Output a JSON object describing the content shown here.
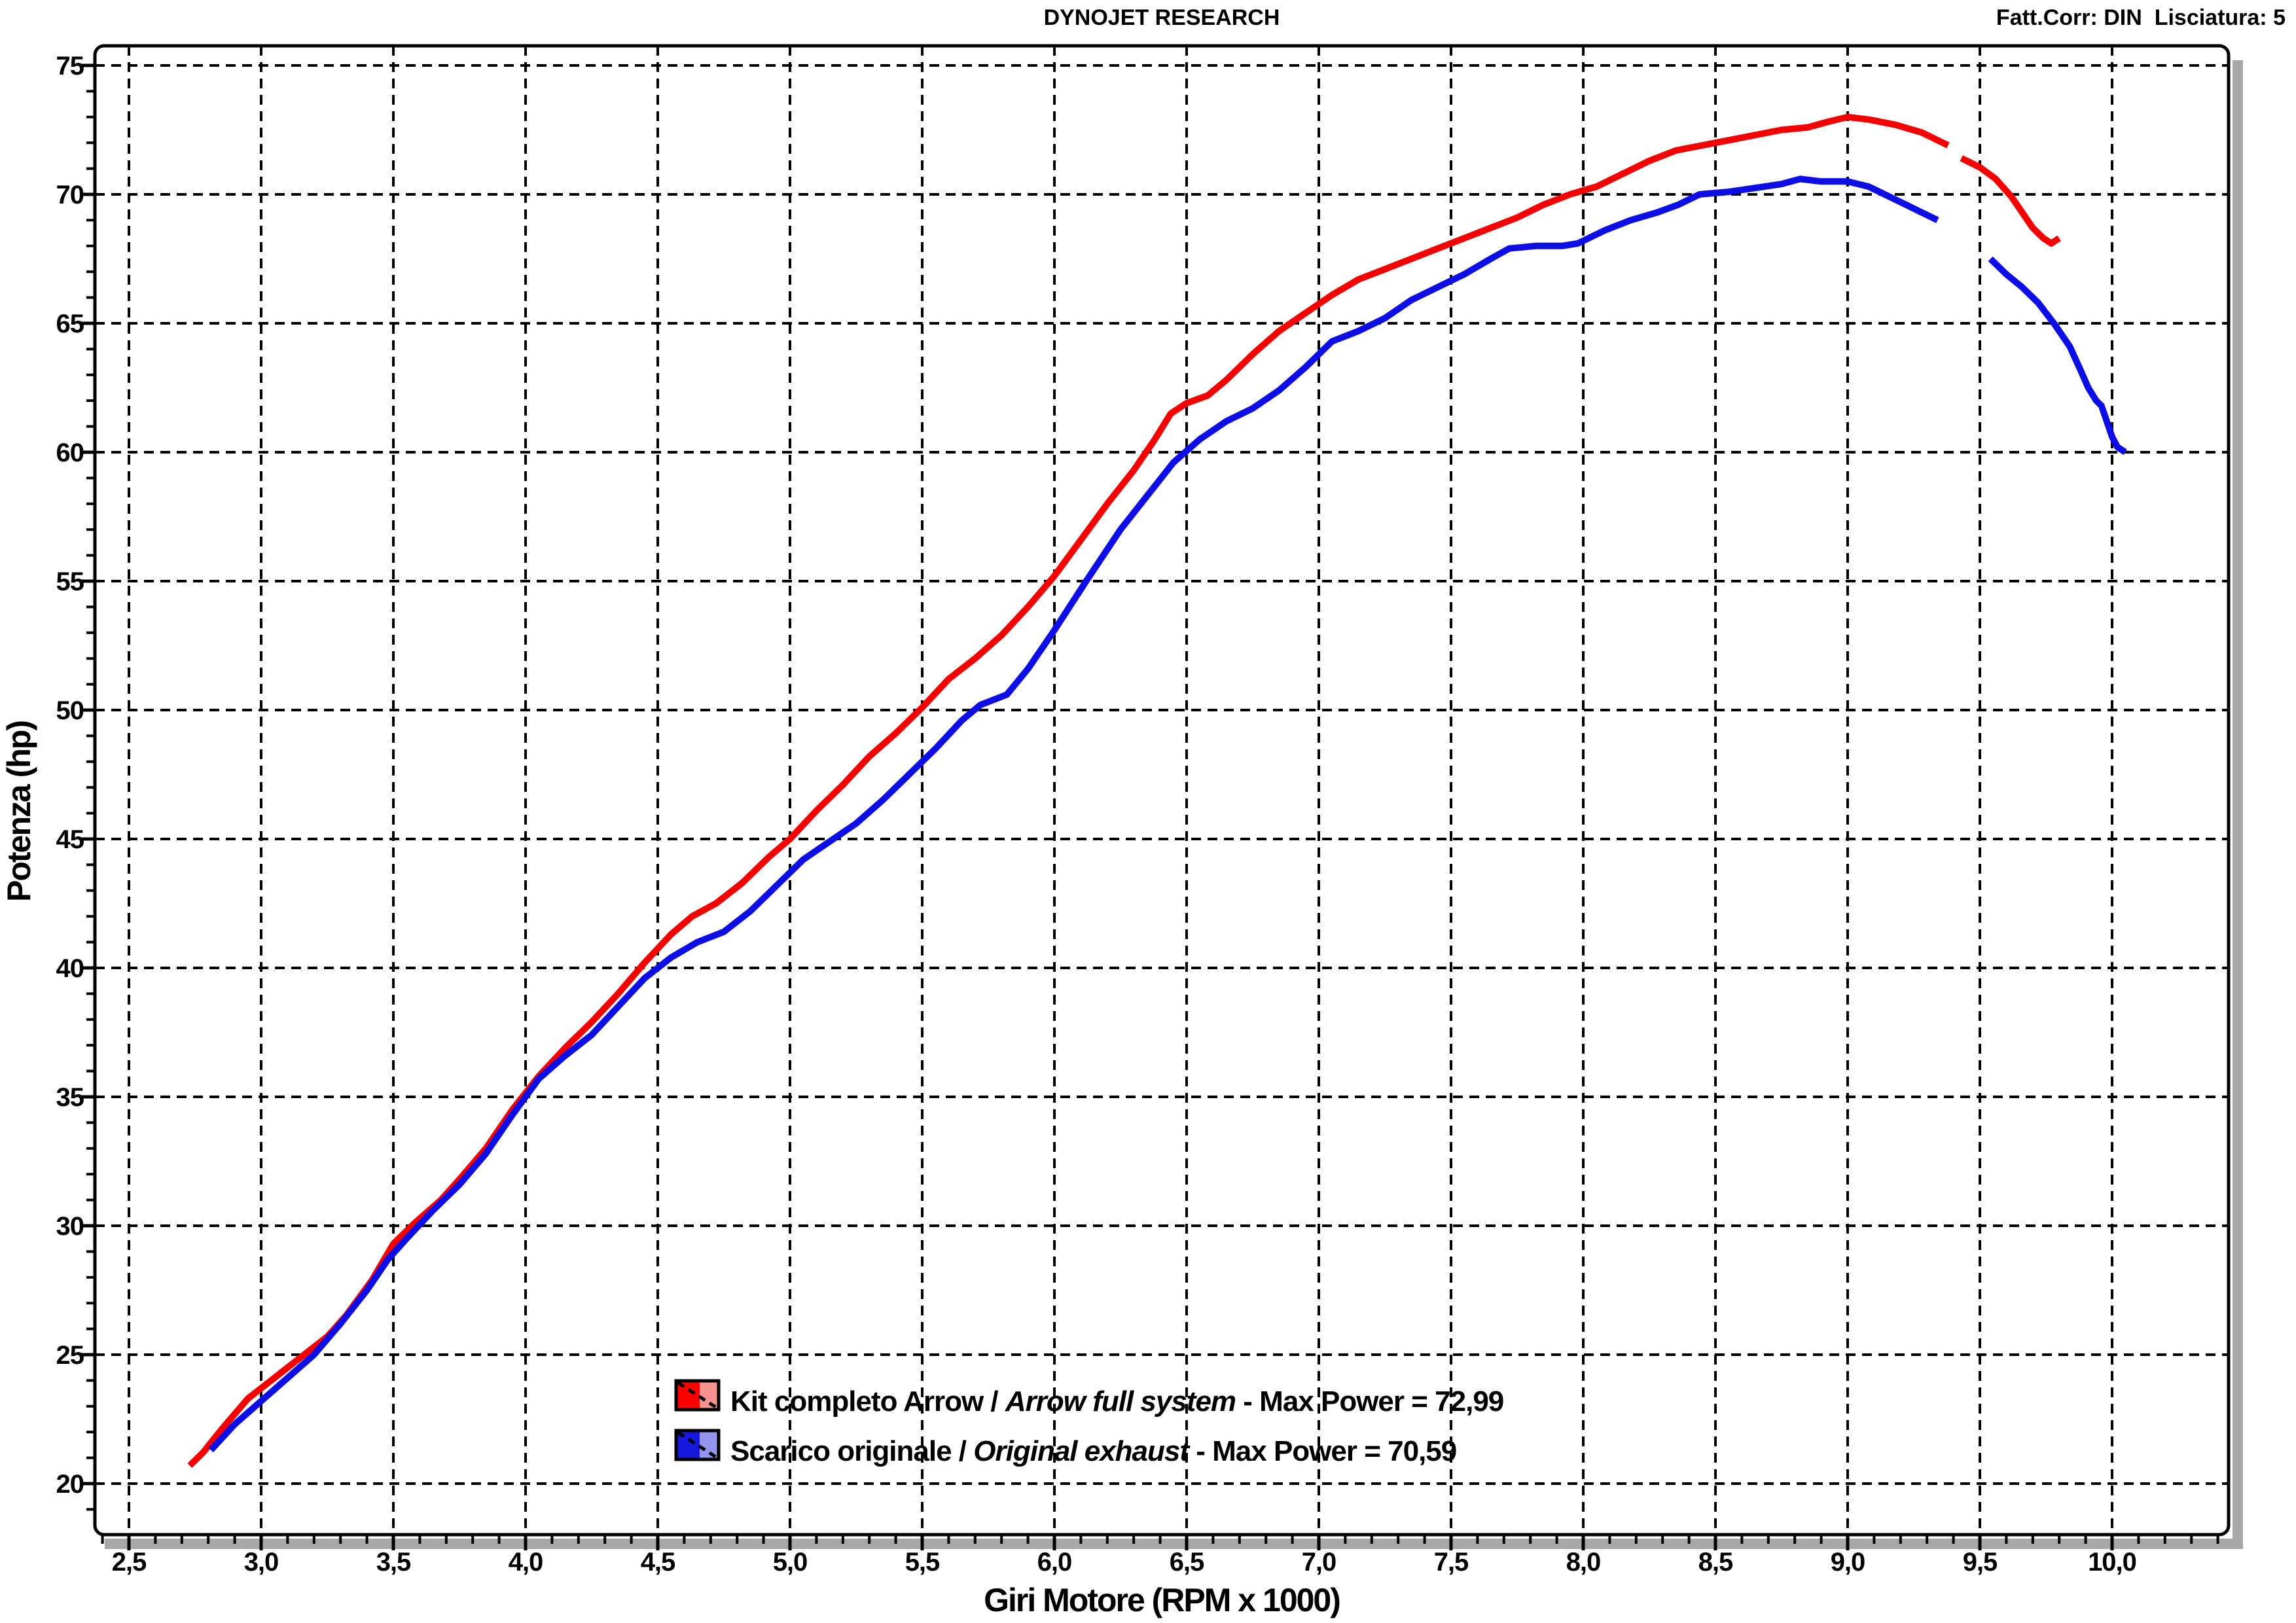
{
  "header": {
    "center": "DYNOJET RESEARCH",
    "right": "Fatt.Corr: DIN  Lisciatura: 5"
  },
  "chart_data": {
    "type": "line",
    "title": "DYNOJET RESEARCH",
    "xlabel": "Giri Motore (RPM x 1000)",
    "ylabel": "Potenza (hp)",
    "xlim": [
      2.37,
      10.44
    ],
    "ylim": [
      18.0,
      76.4
    ],
    "grid": "dashed",
    "legend_position": "bottom-center-inside",
    "x_ticks": [
      {
        "v": 2.5,
        "label": "2,5"
      },
      {
        "v": 3.0,
        "label": "3,0"
      },
      {
        "v": 3.5,
        "label": "3,5"
      },
      {
        "v": 4.0,
        "label": "4,0"
      },
      {
        "v": 4.5,
        "label": "4,5"
      },
      {
        "v": 5.0,
        "label": "5,0"
      },
      {
        "v": 5.5,
        "label": "5,5"
      },
      {
        "v": 6.0,
        "label": "6,0"
      },
      {
        "v": 6.5,
        "label": "6,5"
      },
      {
        "v": 7.0,
        "label": "7,0"
      },
      {
        "v": 7.5,
        "label": "7,5"
      },
      {
        "v": 8.0,
        "label": "8,0"
      },
      {
        "v": 8.5,
        "label": "8,5"
      },
      {
        "v": 9.0,
        "label": "9,0"
      },
      {
        "v": 9.5,
        "label": "9,5"
      },
      {
        "v": 10.0,
        "label": "10,0"
      }
    ],
    "x_minor_step": 0.1,
    "x_minor_range": [
      2.4,
      10.4
    ],
    "y_ticks": [
      {
        "v": 20,
        "label": "20"
      },
      {
        "v": 25,
        "label": "25"
      },
      {
        "v": 30,
        "label": "30"
      },
      {
        "v": 35,
        "label": "35"
      },
      {
        "v": 40,
        "label": "40"
      },
      {
        "v": 45,
        "label": "45"
      },
      {
        "v": 50,
        "label": "50"
      },
      {
        "v": 55,
        "label": "55"
      },
      {
        "v": 60,
        "label": "60"
      },
      {
        "v": 65,
        "label": "65"
      },
      {
        "v": 70,
        "label": "70"
      },
      {
        "v": 75,
        "label": "75"
      }
    ],
    "y_minor_step": 1,
    "y_minor_range": [
      19,
      75
    ],
    "series": [
      {
        "id": "arrow-full-system",
        "color": "#f40000",
        "swatch": {
          "left": "#ff0000",
          "right": "#f79292"
        },
        "legend_plain": "Kit completo Arrow / ",
        "legend_italic": "Arrow full system",
        "legend_rest": " - Max Power = 72,99",
        "max_power": "72,99",
        "segments": [
          [
            [
              2.73,
              20.7
            ],
            [
              2.78,
              21.2
            ],
            [
              2.85,
              22.1
            ],
            [
              2.95,
              23.3
            ],
            [
              3.05,
              24.1
            ],
            [
              3.15,
              24.9
            ],
            [
              3.25,
              25.7
            ],
            [
              3.32,
              26.5
            ],
            [
              3.42,
              27.9
            ],
            [
              3.5,
              29.3
            ],
            [
              3.58,
              30.1
            ],
            [
              3.68,
              31.0
            ],
            [
              3.75,
              31.8
            ],
            [
              3.85,
              33.0
            ],
            [
              3.95,
              34.5
            ],
            [
              4.05,
              35.8
            ],
            [
              4.15,
              36.9
            ],
            [
              4.25,
              37.9
            ],
            [
              4.35,
              39.0
            ],
            [
              4.45,
              40.2
            ],
            [
              4.55,
              41.3
            ],
            [
              4.63,
              42.0
            ],
            [
              4.72,
              42.5
            ],
            [
              4.82,
              43.3
            ],
            [
              4.92,
              44.3
            ],
            [
              5.0,
              45.0
            ],
            [
              5.1,
              46.1
            ],
            [
              5.2,
              47.1
            ],
            [
              5.3,
              48.2
            ],
            [
              5.4,
              49.1
            ],
            [
              5.5,
              50.1
            ],
            [
              5.6,
              51.2
            ],
            [
              5.7,
              52.0
            ],
            [
              5.8,
              52.9
            ],
            [
              5.9,
              54.0
            ],
            [
              6.0,
              55.2
            ],
            [
              6.1,
              56.6
            ],
            [
              6.2,
              58.0
            ],
            [
              6.3,
              59.3
            ],
            [
              6.38,
              60.5
            ],
            [
              6.44,
              61.5
            ],
            [
              6.5,
              61.9
            ],
            [
              6.58,
              62.2
            ],
            [
              6.65,
              62.8
            ],
            [
              6.75,
              63.8
            ],
            [
              6.85,
              64.7
            ],
            [
              6.95,
              65.4
            ],
            [
              7.05,
              66.1
            ],
            [
              7.15,
              66.7
            ],
            [
              7.25,
              67.1
            ],
            [
              7.35,
              67.5
            ],
            [
              7.45,
              67.9
            ],
            [
              7.55,
              68.3
            ],
            [
              7.65,
              68.7
            ],
            [
              7.75,
              69.1
            ],
            [
              7.85,
              69.6
            ],
            [
              7.95,
              70.0
            ],
            [
              8.05,
              70.3
            ],
            [
              8.15,
              70.8
            ],
            [
              8.25,
              71.3
            ],
            [
              8.35,
              71.7
            ],
            [
              8.45,
              71.9
            ],
            [
              8.55,
              72.1
            ],
            [
              8.65,
              72.3
            ],
            [
              8.75,
              72.5
            ],
            [
              8.85,
              72.6
            ],
            [
              8.92,
              72.8
            ],
            [
              9.0,
              73.0
            ],
            [
              9.08,
              72.9
            ],
            [
              9.18,
              72.7
            ],
            [
              9.28,
              72.4
            ],
            [
              9.38,
              71.9
            ]
          ],
          [
            [
              9.43,
              71.4
            ],
            [
              9.5,
              71.05
            ],
            [
              9.56,
              70.6
            ],
            [
              9.62,
              69.9
            ],
            [
              9.66,
              69.3
            ],
            [
              9.7,
              68.7
            ],
            [
              9.74,
              68.3
            ],
            [
              9.77,
              68.1
            ],
            [
              9.8,
              68.3
            ]
          ]
        ]
      },
      {
        "id": "original-exhaust",
        "color": "#0d0de6",
        "swatch": {
          "left": "#1717e0",
          "right": "#9494ee"
        },
        "legend_plain": "Scarico originale / ",
        "legend_italic": "Original exhaust",
        "legend_rest": " - Max Power = 70,59",
        "max_power": "70,59",
        "segments": [
          [
            [
              2.81,
              21.3
            ],
            [
              2.9,
              22.3
            ],
            [
              3.0,
              23.2
            ],
            [
              3.1,
              24.1
            ],
            [
              3.2,
              25.0
            ],
            [
              3.3,
              26.2
            ],
            [
              3.4,
              27.5
            ],
            [
              3.48,
              28.7
            ],
            [
              3.55,
              29.5
            ],
            [
              3.65,
              30.6
            ],
            [
              3.75,
              31.6
            ],
            [
              3.85,
              32.8
            ],
            [
              3.95,
              34.3
            ],
            [
              4.05,
              35.7
            ],
            [
              4.15,
              36.6
            ],
            [
              4.25,
              37.4
            ],
            [
              4.35,
              38.5
            ],
            [
              4.45,
              39.6
            ],
            [
              4.55,
              40.4
            ],
            [
              4.65,
              41.0
            ],
            [
              4.75,
              41.4
            ],
            [
              4.85,
              42.2
            ],
            [
              4.95,
              43.2
            ],
            [
              5.05,
              44.2
            ],
            [
              5.15,
              44.9
            ],
            [
              5.25,
              45.6
            ],
            [
              5.35,
              46.5
            ],
            [
              5.45,
              47.5
            ],
            [
              5.55,
              48.5
            ],
            [
              5.65,
              49.6
            ],
            [
              5.72,
              50.2
            ],
            [
              5.82,
              50.6
            ],
            [
              5.9,
              51.6
            ],
            [
              6.0,
              53.1
            ],
            [
              6.12,
              55.0
            ],
            [
              6.25,
              57.0
            ],
            [
              6.35,
              58.3
            ],
            [
              6.45,
              59.6
            ],
            [
              6.55,
              60.5
            ],
            [
              6.65,
              61.2
            ],
            [
              6.75,
              61.7
            ],
            [
              6.85,
              62.4
            ],
            [
              6.95,
              63.3
            ],
            [
              7.05,
              64.3
            ],
            [
              7.15,
              64.7
            ],
            [
              7.25,
              65.2
            ],
            [
              7.35,
              65.9
            ],
            [
              7.45,
              66.4
            ],
            [
              7.55,
              66.9
            ],
            [
              7.65,
              67.5
            ],
            [
              7.72,
              67.9
            ],
            [
              7.82,
              68.0
            ],
            [
              7.92,
              68.0
            ],
            [
              7.98,
              68.1
            ],
            [
              8.08,
              68.6
            ],
            [
              8.18,
              69.0
            ],
            [
              8.28,
              69.3
            ],
            [
              8.36,
              69.6
            ],
            [
              8.44,
              70.0
            ],
            [
              8.55,
              70.1
            ],
            [
              8.65,
              70.25
            ],
            [
              8.75,
              70.4
            ],
            [
              8.82,
              70.6
            ],
            [
              8.9,
              70.5
            ],
            [
              9.0,
              70.5
            ],
            [
              9.08,
              70.3
            ],
            [
              9.18,
              69.8
            ],
            [
              9.28,
              69.3
            ],
            [
              9.34,
              69.0
            ]
          ],
          [
            [
              9.54,
              67.5
            ],
            [
              9.6,
              66.9
            ],
            [
              9.66,
              66.4
            ],
            [
              9.72,
              65.8
            ],
            [
              9.78,
              65.0
            ],
            [
              9.84,
              64.1
            ],
            [
              9.88,
              63.2
            ],
            [
              9.91,
              62.5
            ],
            [
              9.94,
              62.0
            ],
            [
              9.96,
              61.8
            ],
            [
              9.98,
              61.2
            ],
            [
              10.0,
              60.6
            ],
            [
              10.02,
              60.2
            ],
            [
              10.05,
              60.0
            ]
          ]
        ]
      }
    ]
  }
}
